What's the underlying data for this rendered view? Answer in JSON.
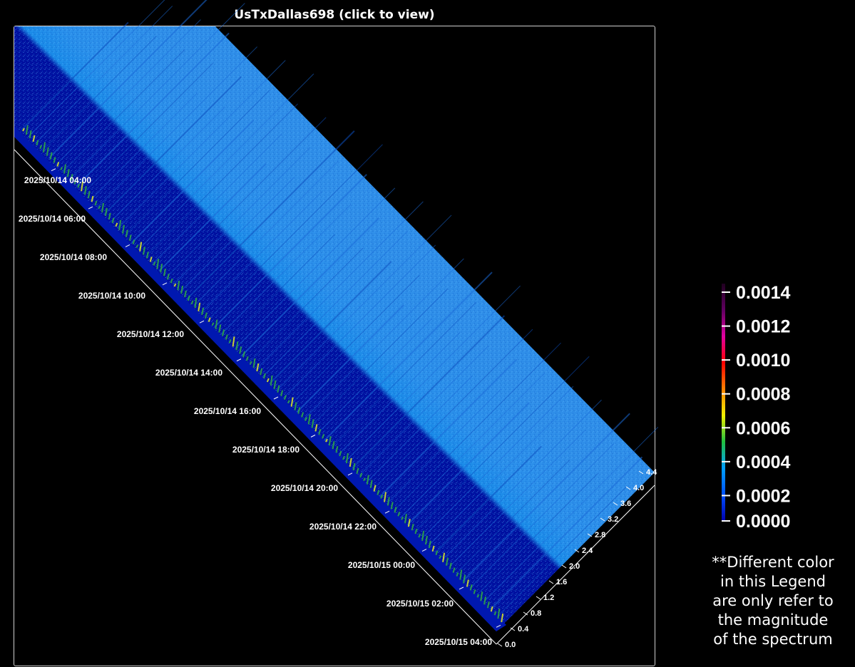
{
  "title": "UsTxDallas698 (click to view)",
  "chart_data": {
    "type": "heatmap",
    "time_ticks": [
      "2025/10/14 04:00",
      "2025/10/14 06:00",
      "2025/10/14 08:00",
      "2025/10/14 10:00",
      "2025/10/14 12:00",
      "2025/10/14 14:00",
      "2025/10/14 16:00",
      "2025/10/14 18:00",
      "2025/10/14 20:00",
      "2025/10/14 22:00",
      "2025/10/15 00:00",
      "2025/10/15 02:00",
      "2025/10/15 04:00"
    ],
    "freq_ticks": [
      "0.0",
      "0.4",
      "0.8",
      "1.2",
      "1.6",
      "2.0",
      "2.4",
      "2.8",
      "3.2",
      "3.6",
      "4.0",
      "4.4"
    ],
    "legend": {
      "ticks": [
        "0.0000",
        "0.0002",
        "0.0004",
        "0.0006",
        "0.0008",
        "0.0010",
        "0.0012",
        "0.0014"
      ],
      "range": [
        0,
        0.0014
      ],
      "colors": [
        "#0000b0",
        "#0050ff",
        "#00a0ff",
        "#20c040",
        "#f0f000",
        "#ff8000",
        "#ff0000",
        "#e000a0",
        "#600060",
        "#200020"
      ]
    },
    "note_lines": [
      "**Different color",
      "in this Legend",
      "are only refer to",
      "the magnitude",
      "of the spectrum"
    ]
  }
}
